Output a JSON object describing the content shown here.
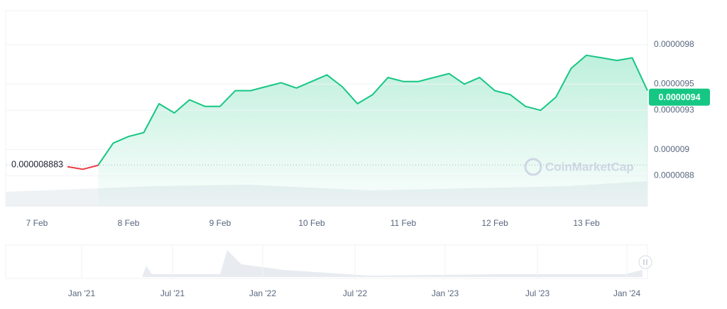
{
  "chart_data": {
    "type": "line",
    "categories": [
      null,
      null,
      "7 Feb",
      null,
      null,
      null,
      null,
      null,
      "8 Feb",
      null,
      null,
      null,
      null,
      null,
      "9 Feb",
      null,
      null,
      null,
      null,
      null,
      "10 Feb",
      null,
      null,
      null,
      null,
      null,
      "11 Feb",
      null,
      null,
      null,
      null,
      null,
      "12 Feb",
      null,
      null,
      null,
      null,
      null,
      "13 Feb",
      null,
      null,
      null,
      null
    ],
    "series": [
      {
        "color": "#16c784",
        "values": [
          null,
          null,
          null,
          null,
          8.87e-06,
          8.85e-06,
          8.88e-06,
          9.05e-06,
          9.1e-06,
          9.13e-06,
          9.35e-06,
          9.28e-06,
          9.38e-06,
          9.33e-06,
          9.33e-06,
          9.45e-06,
          9.45e-06,
          9.48e-06,
          9.51e-06,
          9.47e-06,
          9.52e-06,
          9.57e-06,
          9.48e-06,
          9.35e-06,
          9.42e-06,
          9.55e-06,
          9.52e-06,
          9.52e-06,
          9.55e-06,
          9.58e-06,
          9.5e-06,
          9.55e-06,
          9.45e-06,
          9.42e-06,
          9.33e-06,
          9.3e-06,
          9.4e-06,
          9.62e-06,
          9.72e-06,
          9.7e-06,
          9.68e-06,
          9.7e-06,
          9.45e-06
        ]
      }
    ],
    "below_color": "#ea3943",
    "reference": 8.883e-06,
    "current_price": 9.4e-06,
    "ylim": [
      8.57e-06,
      1.006e-05
    ],
    "yticks": [
      9.8e-06,
      9.5e-06,
      9.3e-06,
      9e-06,
      8.8e-06
    ],
    "grid": true,
    "watermark": "CoinMarketCap",
    "navigator_labels": [
      "Jan '21",
      "Jul '21",
      "Jan '22",
      "Jul '22",
      "Jan '23",
      "Jul '23",
      "Jan '24"
    ]
  }
}
